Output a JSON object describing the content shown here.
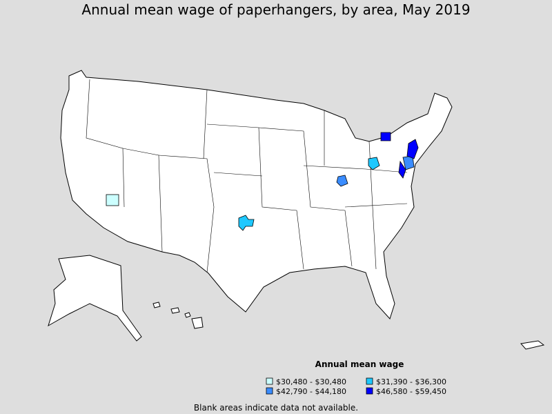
{
  "title": "Annual mean wage of paperhangers, by area, May 2019",
  "legend": {
    "title": "Annual mean wage",
    "items": [
      {
        "label": "$30,480 - $30,480",
        "color": "#ccffff"
      },
      {
        "label": "$31,390 - $36,300",
        "color": "#1ec8ff"
      },
      {
        "label": "$42,790 - $44,180",
        "color": "#3a8cff"
      },
      {
        "label": "$46,580 - $59,450",
        "color": "#0000ff"
      }
    ]
  },
  "note": "Blank areas indicate data not available."
}
